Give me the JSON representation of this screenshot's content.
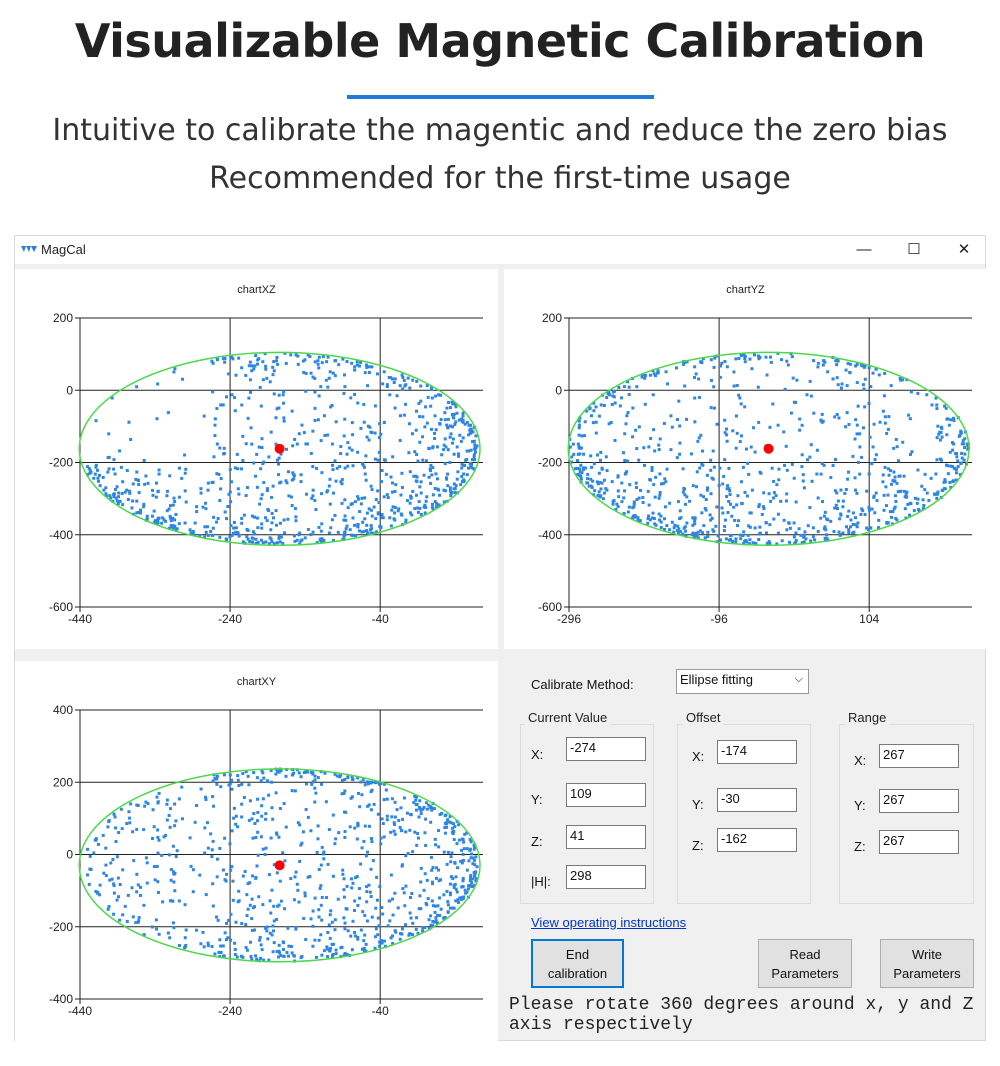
{
  "header": {
    "title": "Visualizable Magnetic Calibration",
    "subtitle_1": "Intuitive to calibrate the magentic and reduce the zero bias",
    "subtitle_2": "Recommended for the first-time usage",
    "accent_color": "#1e7bd8"
  },
  "window": {
    "title": "MagCal",
    "minimize": "—",
    "maximize": "☐",
    "close": "✕"
  },
  "controls": {
    "method_label": "Calibrate Method:",
    "method_value": "Ellipse fitting",
    "current_value": {
      "label": "Current Value",
      "x_label": "X:",
      "y_label": "Y:",
      "z_label": "Z:",
      "h_label": "|H|:",
      "x": "-274",
      "y": "109",
      "z": "41",
      "h": "298"
    },
    "offset": {
      "label": "Offset",
      "x_label": "X:",
      "y_label": "Y:",
      "z_label": "Z:",
      "x": "-174",
      "y": "-30",
      "z": "-162"
    },
    "range": {
      "label": "Range",
      "x_label": "X:",
      "y_label": "Y:",
      "z_label": "Z:",
      "x": "267",
      "y": "267",
      "z": "267"
    },
    "instructions_link": "View operating instructions",
    "end_button": "End calibration",
    "read_button": "Read Parameters",
    "write_button": "Write Parameters",
    "message": "Please rotate 360 degrees around x, y and Z axis respectively"
  },
  "chart_data": [
    {
      "id": "xz",
      "type": "scatter",
      "title": "chartXZ",
      "xlim": [
        -440,
        97
      ],
      "ylim": [
        -600,
        200
      ],
      "xticks": [
        -440,
        -240,
        -40
      ],
      "yticks": [
        200,
        0,
        -200,
        -400,
        -600
      ],
      "center": [
        -174,
        -162
      ],
      "radius": [
        267,
        267
      ],
      "grid": true,
      "point_color": "#2f86e0",
      "center_color": "#ff0000",
      "ellipse_color": "#4cd84c"
    },
    {
      "id": "yz",
      "type": "scatter",
      "title": "chartYZ",
      "xlim": [
        -296,
        241
      ],
      "ylim": [
        -600,
        200
      ],
      "xticks": [
        -296,
        -96,
        104
      ],
      "yticks": [
        200,
        0,
        -200,
        -400,
        -600
      ],
      "center": [
        -30,
        -162
      ],
      "radius": [
        267,
        267
      ],
      "grid": true,
      "point_color": "#2f86e0",
      "center_color": "#ff0000",
      "ellipse_color": "#4cd84c"
    },
    {
      "id": "xy",
      "type": "scatter",
      "title": "chartXY",
      "xlim": [
        -440,
        97
      ],
      "ylim": [
        -400,
        400
      ],
      "xticks": [
        -440,
        -240,
        -40
      ],
      "yticks": [
        400,
        200,
        0,
        -200,
        -400
      ],
      "center": [
        -174,
        -30
      ],
      "radius": [
        267,
        267
      ],
      "grid": true,
      "point_color": "#2f86e0",
      "center_color": "#ff0000",
      "ellipse_color": "#4cd84c"
    }
  ]
}
